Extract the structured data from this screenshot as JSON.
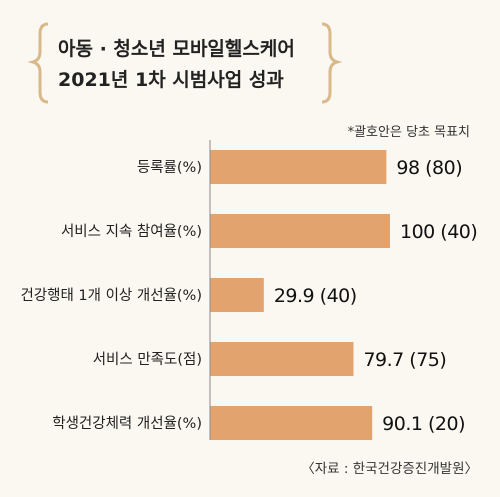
{
  "title": {
    "line1": "아동 · 청소년 모바일헬스케어",
    "line2": "2021년 1차 시범사업 성과"
  },
  "note": "*괄호안은 당초 목표치",
  "source": "〈자료 : 한국건강증진개발원〉",
  "colors": {
    "bar": "#e3a36f",
    "background": "#fbf8f2",
    "bracket": "#d9b98a",
    "axis": "#888888"
  },
  "chart_data": {
    "type": "bar",
    "orientation": "horizontal",
    "categories": [
      "등록률(%)",
      "서비스 지속 참여율(%)",
      "건강행태 1개 이상 개선율(%)",
      "서비스 만족도(점)",
      "학생건강체력 개선율(%)"
    ],
    "series": [
      {
        "values": [
          98,
          100,
          29.9,
          79.7,
          90.1
        ]
      }
    ],
    "targets": [
      80,
      40,
      40,
      75,
      20
    ],
    "data_labels": [
      "98 (80)",
      "100 (40)",
      "29.9 (40)",
      "79.7 (75)",
      "90.1 (20)"
    ],
    "xlim": [
      0,
      100
    ],
    "grid": false
  }
}
